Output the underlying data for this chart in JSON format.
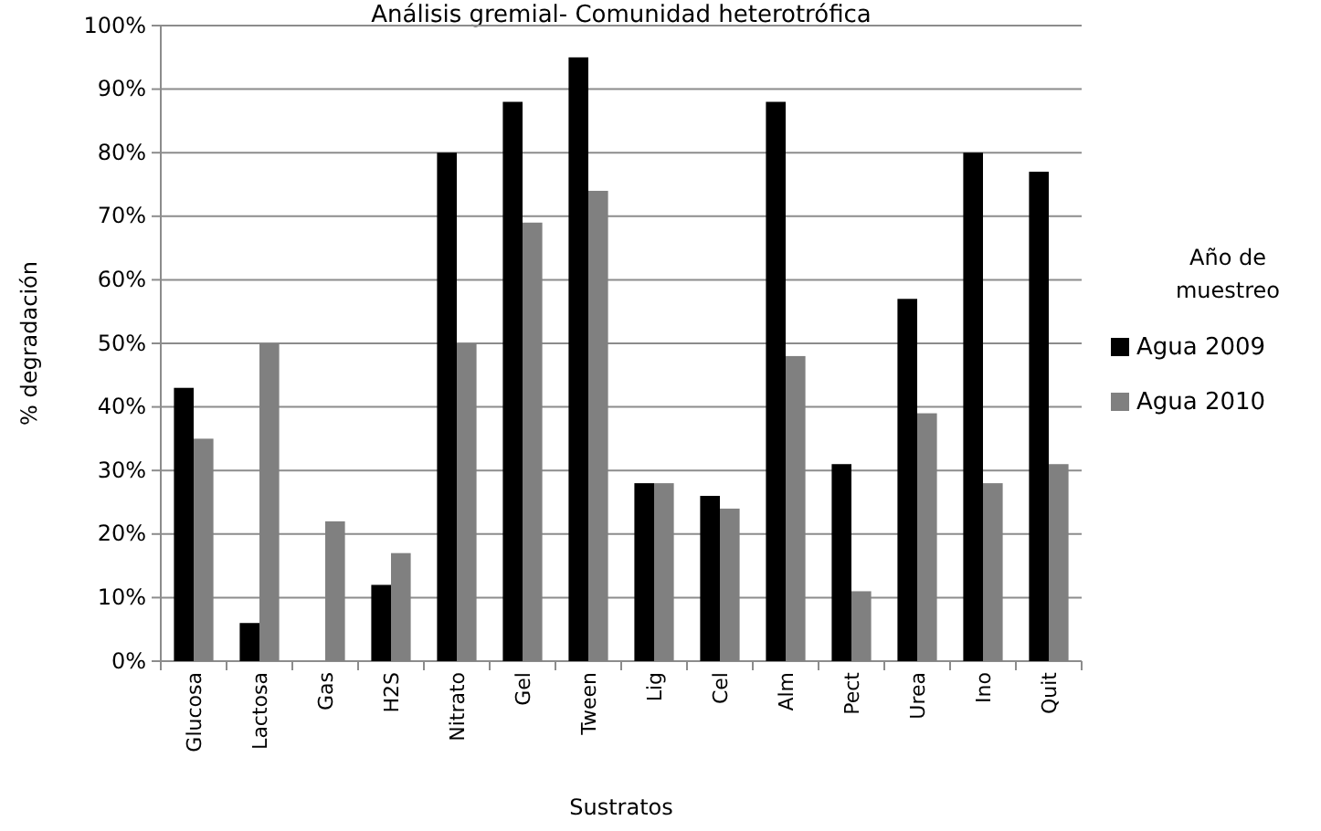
{
  "chart_data": {
    "type": "bar",
    "title": "Análisis gremial- Comunidad heterotrófica",
    "xlabel": "Sustratos",
    "ylabel": "% degradación",
    "legend_title": "Año de muestreo",
    "categories": [
      "Glucosa",
      "Lactosa",
      "Gas",
      "H2S",
      "Nitrato",
      "Gel",
      "Tween",
      "Lig",
      "Cel",
      "Alm",
      "Pect",
      "Urea",
      "Ino",
      "Quit"
    ],
    "series": [
      {
        "name": "Agua 2009",
        "color": "#000000",
        "values": [
          43,
          6,
          0,
          12,
          80,
          88,
          95,
          28,
          26,
          88,
          31,
          57,
          80,
          77
        ]
      },
      {
        "name": "Agua 2010",
        "color": "#808080",
        "values": [
          35,
          50,
          22,
          17,
          50,
          69,
          74,
          28,
          24,
          48,
          11,
          39,
          28,
          31
        ]
      }
    ],
    "ylim": [
      0,
      100
    ],
    "yticks": [
      {
        "value": 0,
        "label": "0%"
      },
      {
        "value": 10,
        "label": "10%"
      },
      {
        "value": 20,
        "label": "20%"
      },
      {
        "value": 30,
        "label": "30%"
      },
      {
        "value": 40,
        "label": "40%"
      },
      {
        "value": 50,
        "label": "50%"
      },
      {
        "value": 60,
        "label": "60%"
      },
      {
        "value": 70,
        "label": "70%"
      },
      {
        "value": 80,
        "label": "80%"
      },
      {
        "value": 90,
        "label": "90%"
      },
      {
        "value": 100,
        "label": "100%"
      }
    ],
    "grid": "y",
    "legend": "right"
  }
}
